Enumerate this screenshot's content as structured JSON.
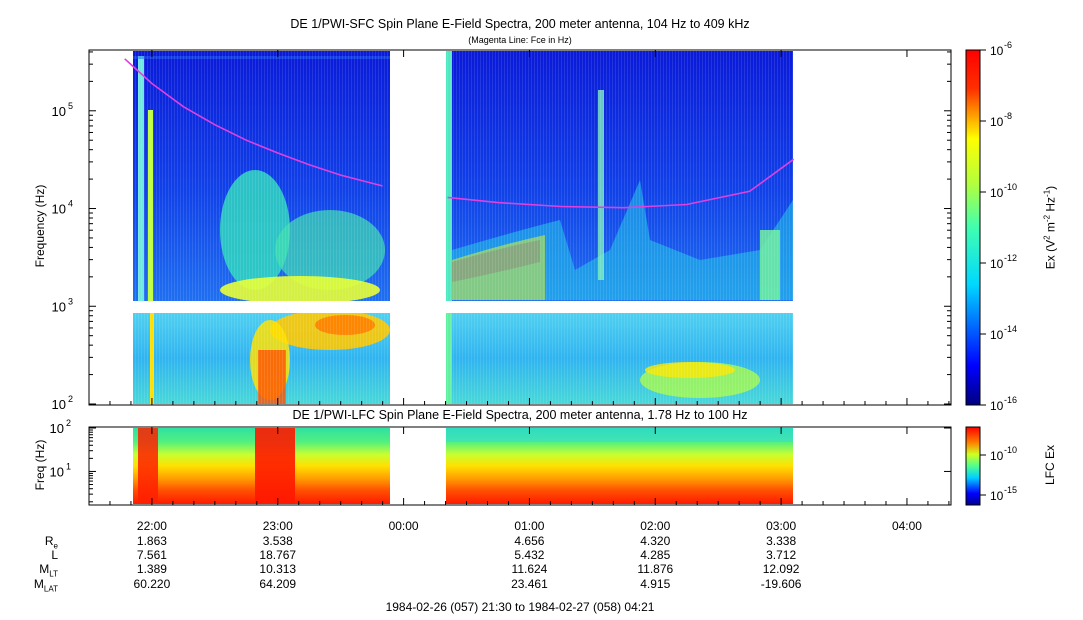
{
  "chart_data": [
    {
      "type": "heatmap",
      "title": "DE 1/PWI-SFC  Spin Plane E-Field Spectra, 200 meter antenna, 104 Hz to 409 kHz",
      "subtitle": "(Magenta Line: Fce in Hz)",
      "ylabel": "Frequency (Hz)",
      "y_scale": "log",
      "ylim": [
        100,
        409000
      ],
      "y_ticks": [
        {
          "value": 100,
          "base": "10",
          "exp": "2"
        },
        {
          "value": 1000,
          "base": "10",
          "exp": "3"
        },
        {
          "value": 10000,
          "base": "10",
          "exp": "4"
        },
        {
          "value": 100000,
          "base": "10",
          "exp": "5"
        }
      ],
      "colorbar": {
        "label_prefix": "Ex (V",
        "label_full": "Ex (V2 m-2 Hz-1)",
        "scale": "log",
        "range": [
          1e-16,
          1e-06
        ],
        "ticks": [
          {
            "base": "10",
            "exp": "-6",
            "value": 1e-06
          },
          {
            "base": "10",
            "exp": "-8",
            "value": 1e-08
          },
          {
            "base": "10",
            "exp": "-10",
            "value": 1e-10
          },
          {
            "base": "10",
            "exp": "-12",
            "value": 1e-12
          },
          {
            "base": "10",
            "exp": "-14",
            "value": 1e-14
          },
          {
            "base": "10",
            "exp": "-16",
            "value": 1e-16
          }
        ]
      },
      "data_gaps_utc": [
        [
          "1984-02-26 21:38",
          "1984-02-26 21:48"
        ],
        [
          "1984-02-26 23:52",
          "1984-02-27 00:21"
        ],
        [
          "1984-02-27 03:06",
          "1984-02-27 04:21"
        ]
      ],
      "fce_line": {
        "name": "Fce",
        "color": "#e040e0",
        "points": [
          [
            "21:47",
            340000
          ],
          [
            "22:00",
            190000
          ],
          [
            "22:15",
            110000
          ],
          [
            "22:30",
            72000
          ],
          [
            "22:45",
            50000
          ],
          [
            "23:00",
            37000
          ],
          [
            "23:15",
            28000
          ],
          [
            "23:30",
            22000
          ],
          [
            "23:50",
            17000
          ],
          [
            "00:21",
            13000
          ],
          [
            "00:45",
            11500
          ],
          [
            "01:15",
            10500
          ],
          [
            "01:45",
            10200
          ],
          [
            "02:15",
            11000
          ],
          [
            "02:45",
            15000
          ],
          [
            "03:06",
            32000
          ]
        ]
      }
    },
    {
      "type": "heatmap",
      "title": "DE 1/PWI-LFC  Spin Plane E-Field Spectra, 200 meter antenna, 1.78 Hz to 100 Hz",
      "ylabel": "Freq (Hz)",
      "y_scale": "log",
      "ylim": [
        1.78,
        100
      ],
      "y_ticks": [
        {
          "value": 10,
          "base": "10",
          "exp": "1"
        },
        {
          "value": 100,
          "base": "10",
          "exp": "2"
        }
      ],
      "colorbar": {
        "label": "LFC Ex",
        "scale": "log",
        "ticks": [
          {
            "base": "10",
            "exp": "-10",
            "value": 1e-10
          },
          {
            "base": "10",
            "exp": "-15",
            "value": 1e-15
          }
        ]
      }
    }
  ],
  "x_axis": {
    "ticks": [
      "22:00",
      "23:00",
      "00:00",
      "01:00",
      "02:00",
      "03:00",
      "04:00"
    ],
    "range_label": "1984-02-26 (057) 21:30 to 1984-02-27 (058) 04:21"
  },
  "ephemeris": {
    "rows": [
      {
        "name": "R",
        "sub": "e",
        "values": [
          "1.863",
          "3.538",
          "",
          "4.656",
          "4.320",
          "3.338",
          ""
        ]
      },
      {
        "name": "L",
        "sub": "",
        "values": [
          "7.561",
          "18.767",
          "",
          "5.432",
          "4.285",
          "3.712",
          ""
        ]
      },
      {
        "name": "M",
        "sub": "LT",
        "values": [
          "1.389",
          "10.313",
          "",
          "11.624",
          "11.876",
          "12.092",
          ""
        ]
      },
      {
        "name": "M",
        "sub": "LAT",
        "values": [
          "60.220",
          "64.209",
          "",
          "23.461",
          "4.915",
          "-19.606",
          ""
        ]
      }
    ]
  },
  "colors": {
    "magenta_line": "#e040e0",
    "jet_low": "#00007f",
    "jet_high": "#7f0000"
  }
}
